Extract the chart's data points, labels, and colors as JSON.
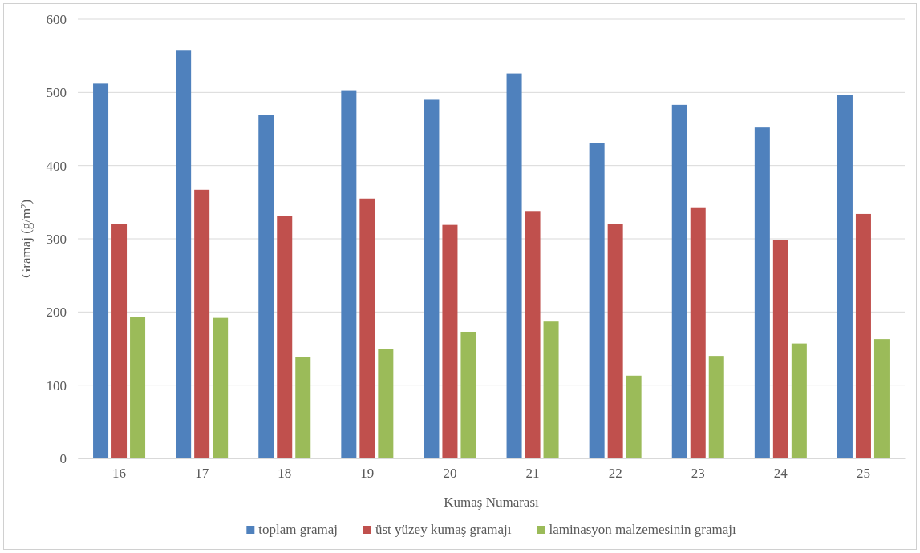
{
  "chart_data": {
    "type": "bar",
    "xlabel": "Kumaş Numarası",
    "ylabel": "Gramaj  (g/m²)",
    "categories": [
      "16",
      "17",
      "18",
      "19",
      "20",
      "21",
      "22",
      "23",
      "24",
      "25"
    ],
    "series": [
      {
        "name": "toplam gramaj",
        "color": "#4f81bd",
        "values": [
          512,
          557,
          469,
          503,
          490,
          526,
          431,
          483,
          452,
          497
        ]
      },
      {
        "name": "üst yüzey kumaş gramajı",
        "color": "#c0504d",
        "values": [
          320,
          367,
          331,
          355,
          319,
          338,
          320,
          343,
          298,
          334
        ]
      },
      {
        "name": "laminasyon malzemesinin gramajı",
        "color": "#9bbb59",
        "values": [
          193,
          192,
          139,
          149,
          173,
          187,
          113,
          140,
          157,
          163
        ]
      }
    ],
    "ylim": [
      0,
      600
    ],
    "yticks": [
      0,
      100,
      200,
      300,
      400,
      500,
      600
    ],
    "grid": "y",
    "legend": "bottom"
  }
}
